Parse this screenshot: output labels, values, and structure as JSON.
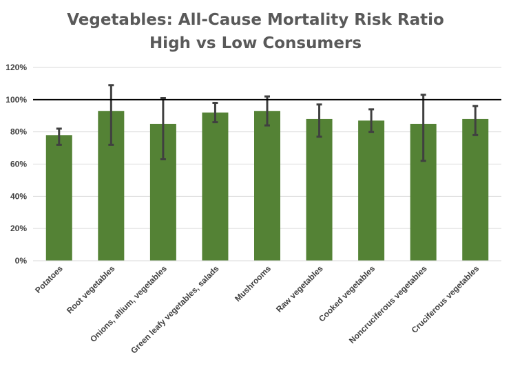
{
  "chart_data": {
    "type": "bar",
    "title": "Vegetables: All-Cause Mortality Risk Ratio",
    "subtitle": "High vs Low Consumers",
    "xlabel": "",
    "ylabel": "",
    "ylim": [
      0,
      120
    ],
    "yticks": [
      "0%",
      "20%",
      "40%",
      "60%",
      "80%",
      "100%",
      "120%"
    ],
    "reference_line": 100,
    "grid": true,
    "legend": "none",
    "bar_color": "#548235",
    "errorbar_color": "#404040",
    "categories": [
      "Potatoes",
      "Root vegetables",
      "Onions, allium, vegetables",
      "Green leafy vegetables, salads",
      "Mushrooms",
      "Raw vegetables",
      "Cooked vegetables",
      "Noncruciferous vegetables",
      "Cruciferous vegetables"
    ],
    "values": [
      78,
      93,
      85,
      92,
      93,
      88,
      87,
      85,
      88
    ],
    "error_low": [
      72,
      72,
      63,
      86,
      84,
      77,
      80,
      62,
      78
    ],
    "error_high": [
      82,
      109,
      101,
      98,
      102,
      97,
      94,
      103,
      96
    ]
  }
}
